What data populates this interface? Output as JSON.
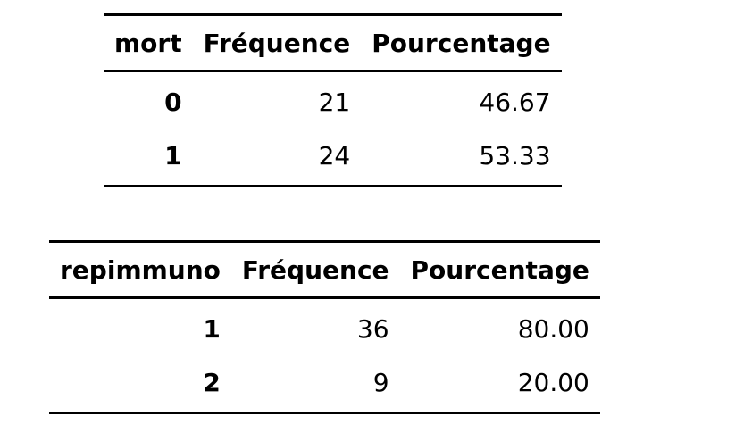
{
  "tables": [
    {
      "columns": [
        "mort",
        "Fréquence",
        "Pourcentage"
      ],
      "rows": [
        [
          "0",
          "21",
          "46.67"
        ],
        [
          "1",
          "24",
          "53.33"
        ]
      ]
    },
    {
      "columns": [
        "repimmuno",
        "Fréquence",
        "Pourcentage"
      ],
      "rows": [
        [
          "1",
          "36",
          "80.00"
        ],
        [
          "2",
          "9",
          "20.00"
        ]
      ]
    }
  ]
}
